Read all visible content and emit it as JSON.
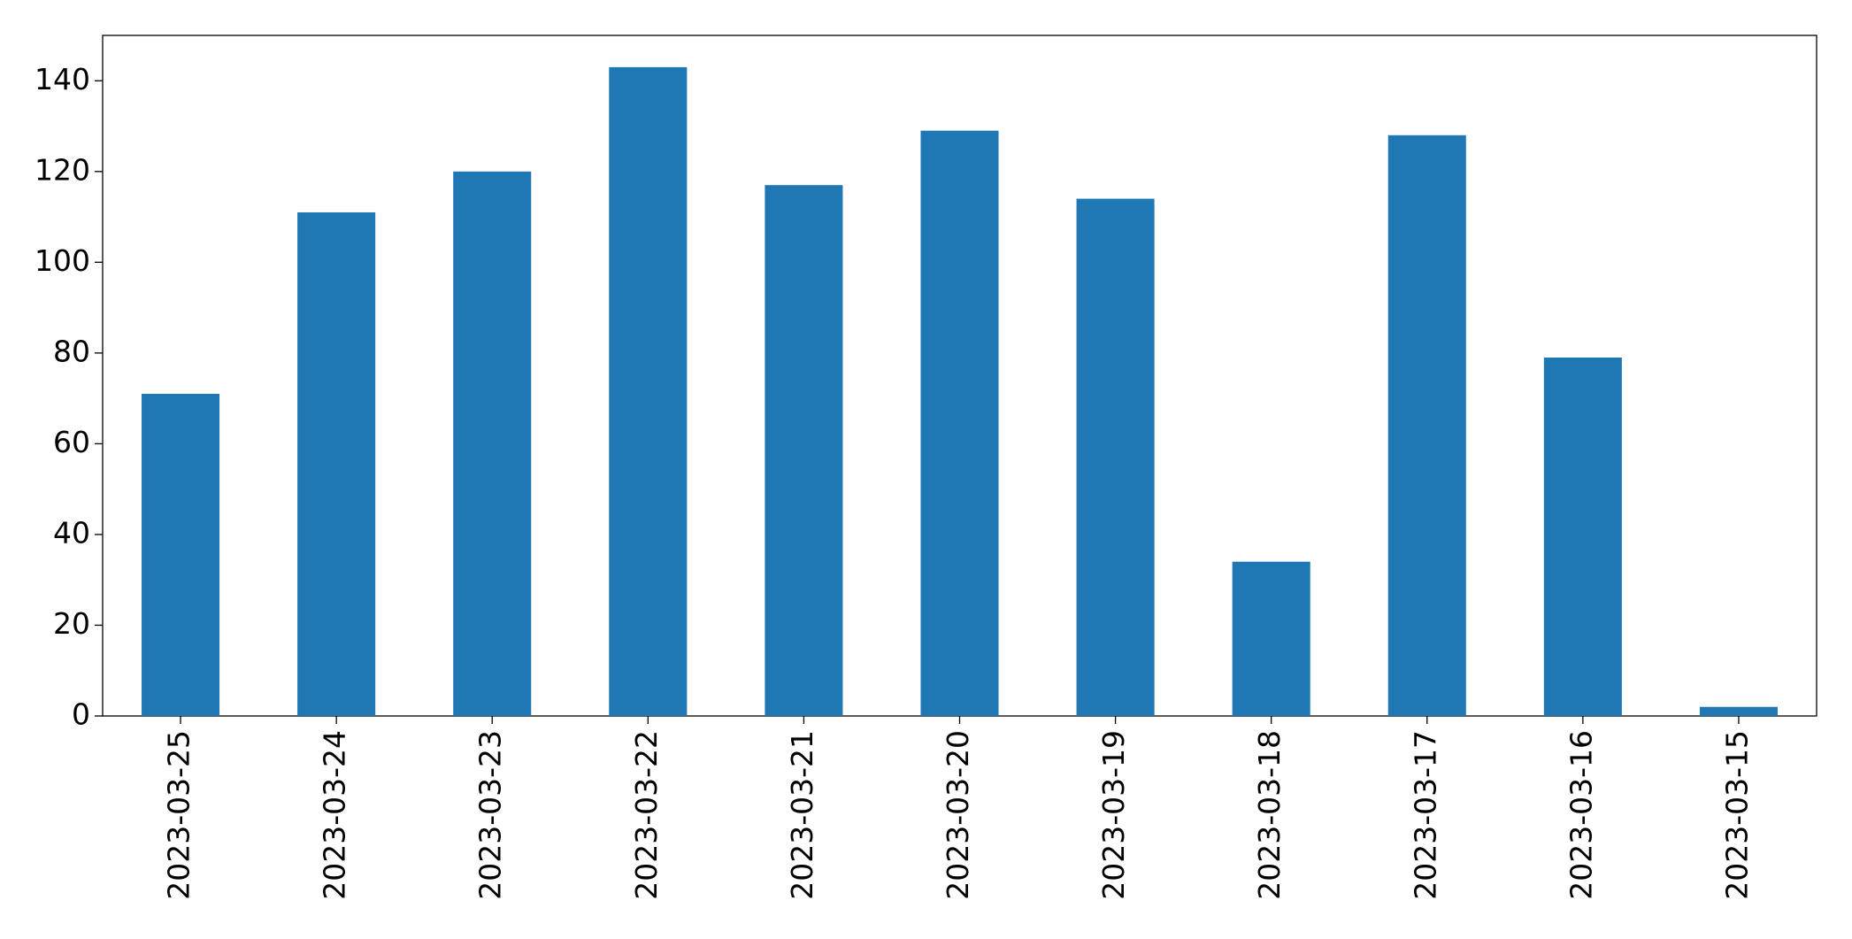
{
  "chart_data": {
    "type": "bar",
    "categories": [
      "2023-03-25",
      "2023-03-24",
      "2023-03-23",
      "2023-03-22",
      "2023-03-21",
      "2023-03-20",
      "2023-03-19",
      "2023-03-18",
      "2023-03-17",
      "2023-03-16",
      "2023-03-15"
    ],
    "values": [
      71,
      111,
      120,
      143,
      117,
      129,
      114,
      34,
      128,
      79,
      2
    ],
    "color": "#1f77b4",
    "ylim": [
      0,
      150
    ],
    "yticks": [
      0,
      20,
      40,
      60,
      80,
      100,
      120,
      140
    ],
    "grid": false
  }
}
